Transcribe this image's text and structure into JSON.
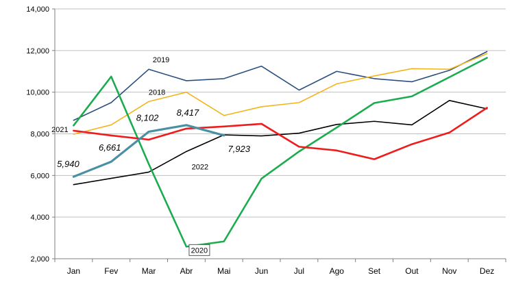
{
  "chart_data": {
    "type": "line",
    "title": "",
    "xlabel": "",
    "ylabel": "",
    "ylim": [
      2000,
      14000
    ],
    "yticks": [
      2000,
      4000,
      6000,
      8000,
      10000,
      12000,
      14000
    ],
    "ytick_labels": [
      "2,000",
      "4,000",
      "6,000",
      "8,000",
      "10,000",
      "12,000",
      "14,000"
    ],
    "grid": "horizontal",
    "legend": "none",
    "categories": [
      "Jan",
      "Fev",
      "Mar",
      "Abr",
      "Mai",
      "Jun",
      "Jul",
      "Ago",
      "Set",
      "Out",
      "Nov",
      "Dez"
    ],
    "series": [
      {
        "name": "2019",
        "color": "#2a4f7f",
        "width": 1.6,
        "values": [
          8650,
          9500,
          11100,
          10550,
          10650,
          11250,
          10100,
          11000,
          10650,
          10500,
          11050,
          11950
        ]
      },
      {
        "name": "2018",
        "color": "#f2b51c",
        "width": 1.6,
        "values": [
          7980,
          8430,
          9550,
          10000,
          8880,
          9300,
          9500,
          10400,
          10780,
          11130,
          11100,
          11850
        ]
      },
      {
        "name": "2021",
        "color": "#000000",
        "width": 1.4,
        "values": [
          null,
          null,
          null,
          null,
          null,
          null,
          null,
          null,
          null,
          null,
          null,
          null
        ]
      },
      {
        "name": "2022",
        "color": "#000000",
        "width": 1.6,
        "values": [
          5560,
          5860,
          6160,
          7150,
          7950,
          7900,
          8030,
          8450,
          8600,
          8430,
          9600,
          9200
        ]
      },
      {
        "name": "2020",
        "color": "#1aac4e",
        "width": 2.6,
        "values": [
          8400,
          10750,
          6550,
          2580,
          2830,
          5850,
          7150,
          8300,
          9480,
          9800,
          10720,
          11650
        ]
      },
      {
        "name": "",
        "color": "#ee1c1c",
        "width": 2.6,
        "values": [
          8150,
          7920,
          7720,
          8250,
          8350,
          8480,
          7380,
          7200,
          6780,
          7500,
          8060,
          9250
        ]
      },
      {
        "name": "",
        "color": "#4a90a4",
        "width": 3.2,
        "values": [
          5940,
          6661,
          8102,
          8417,
          7923,
          null,
          null,
          null,
          null,
          null,
          null,
          null
        ],
        "data_labels": [
          "5,940",
          "6,661",
          "8,102",
          "8,417",
          "7,923"
        ]
      }
    ],
    "series_labels": [
      {
        "text": "2019",
        "series": 0,
        "category": 2
      },
      {
        "text": "2018",
        "series": 1,
        "category": 2
      },
      {
        "text": "2021",
        "series": 5,
        "category": 0
      },
      {
        "text": "2022",
        "series": 3,
        "category": 3
      },
      {
        "text": "2020",
        "series": 4,
        "category": 3,
        "boxed": true
      }
    ]
  }
}
